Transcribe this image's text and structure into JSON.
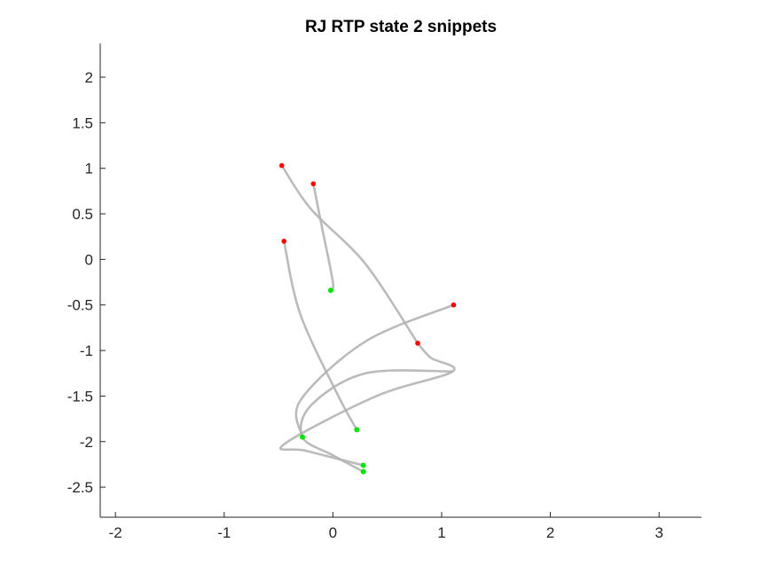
{
  "chart_data": {
    "type": "line",
    "title": "RJ  RTP state 2 snippets",
    "xlabel": "",
    "ylabel": "",
    "xlim": [
      -2.14,
      3.39
    ],
    "ylim": [
      -2.83,
      2.37
    ],
    "xticks": [
      -2,
      -1,
      0,
      1,
      2,
      3
    ],
    "yticks": [
      2,
      1.5,
      1,
      0.5,
      0,
      -0.5,
      -1,
      -1.5,
      -2,
      -2.5
    ],
    "xtick_labels": [
      "-2",
      "-1",
      "0",
      "1",
      "2",
      "3"
    ],
    "ytick_labels": [
      "2",
      "1.5",
      "1",
      "0.5",
      "0",
      "-0.5",
      "-1",
      "-1.5",
      "-2",
      "-2.5"
    ],
    "grid": false,
    "legend": "none",
    "start_marker_color": "#ff0000",
    "end_marker_color": "#00e600",
    "line_color": "#b4b4b4",
    "series": [
      {
        "points": [
          [
            -0.47,
            1.03
          ],
          [
            -0.2,
            0.55
          ],
          [
            0.3,
            -0.05
          ],
          [
            0.78,
            -0.92
          ]
        ]
      },
      {
        "points": [
          [
            -0.18,
            0.83
          ],
          [
            -0.1,
            0.35
          ],
          [
            0.0,
            -0.25
          ],
          [
            -0.02,
            -0.34
          ]
        ]
      },
      {
        "points": [
          [
            -0.45,
            0.2
          ],
          [
            -0.3,
            -0.6
          ],
          [
            0.05,
            -1.5
          ],
          [
            0.22,
            -1.87
          ]
        ]
      },
      {
        "points": [
          [
            1.11,
            -0.5
          ],
          [
            0.3,
            -0.9
          ],
          [
            -0.3,
            -1.55
          ],
          [
            -0.28,
            -1.95
          ]
        ]
      },
      {
        "points": [
          [
            0.78,
            -0.92
          ],
          [
            0.9,
            -1.08
          ],
          [
            1.1,
            -1.23
          ],
          [
            0.4,
            -1.5
          ],
          [
            -0.45,
            -2.03
          ],
          [
            -0.25,
            -2.1
          ],
          [
            0.28,
            -2.26
          ]
        ]
      },
      {
        "points": [
          [
            1.1,
            -1.23
          ],
          [
            0.3,
            -1.25
          ],
          [
            -0.2,
            -1.6
          ],
          [
            -0.28,
            -1.95
          ],
          [
            0.0,
            -2.15
          ],
          [
            0.28,
            -2.33
          ]
        ]
      }
    ],
    "start_points": [
      [
        -0.47,
        1.03
      ],
      [
        -0.18,
        0.83
      ],
      [
        -0.45,
        0.2
      ],
      [
        1.11,
        -0.5
      ],
      [
        0.78,
        -0.92
      ]
    ],
    "end_points": [
      [
        -0.02,
        -0.34
      ],
      [
        0.22,
        -1.87
      ],
      [
        -0.28,
        -1.95
      ],
      [
        0.28,
        -2.26
      ],
      [
        0.28,
        -2.33
      ]
    ]
  }
}
